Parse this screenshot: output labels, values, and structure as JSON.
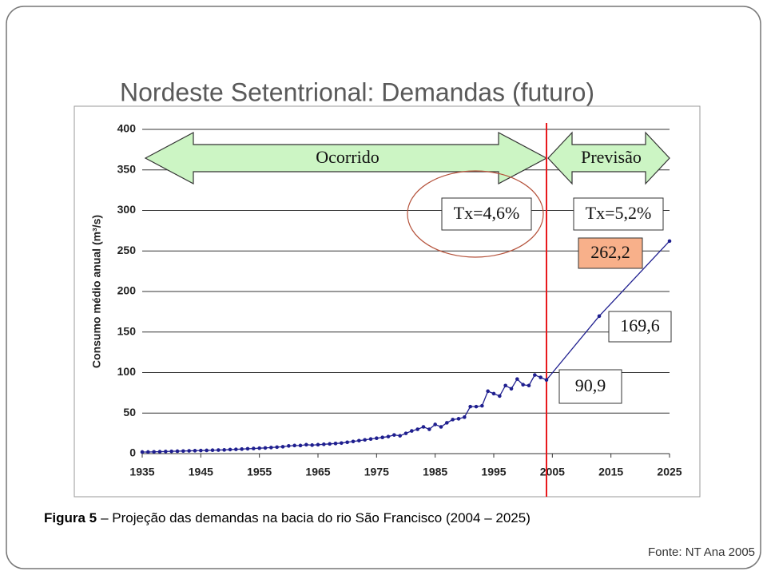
{
  "title": "Nordeste Setentrional: Demandas (futuro)",
  "caption_label": "Figura 5",
  "caption": "– Projeção das demandas na bacia do rio São Francisco (2004 – 2025)",
  "source": "Fonte: NT Ana 2005",
  "chart_data": {
    "type": "line",
    "ylabel": "Consumo médio anual (m³/s)",
    "x": [
      1935,
      1936,
      1937,
      1938,
      1939,
      1940,
      1941,
      1942,
      1943,
      1944,
      1945,
      1946,
      1947,
      1948,
      1949,
      1950,
      1951,
      1952,
      1953,
      1954,
      1955,
      1956,
      1957,
      1958,
      1959,
      1960,
      1961,
      1962,
      1963,
      1964,
      1965,
      1966,
      1967,
      1968,
      1969,
      1970,
      1971,
      1972,
      1973,
      1974,
      1975,
      1976,
      1977,
      1978,
      1979,
      1980,
      1981,
      1982,
      1983,
      1984,
      1985,
      1986,
      1987,
      1988,
      1989,
      1990,
      1991,
      1992,
      1993,
      1994,
      1995,
      1996,
      1997,
      1998,
      1999,
      2000,
      2001,
      2002,
      2003,
      2004,
      2013,
      2025
    ],
    "series": [
      {
        "name": "Consumo",
        "color": "#1f1f8f",
        "values": [
          2,
          2,
          2.2,
          2.4,
          2.6,
          2.8,
          3,
          3.2,
          3.4,
          3.6,
          3.8,
          4,
          4.2,
          4.4,
          4.6,
          5,
          5.3,
          5.6,
          6,
          6.3,
          6.7,
          7,
          7.5,
          8,
          8.5,
          9.5,
          10,
          10,
          11,
          10.5,
          11,
          11.5,
          12,
          12.5,
          13,
          14,
          15,
          16,
          17,
          18,
          19,
          20,
          21,
          23,
          22,
          25,
          28,
          30,
          33,
          30,
          36,
          33,
          38,
          42,
          43,
          45,
          58,
          58,
          59,
          77,
          74,
          71,
          84,
          80,
          92,
          85,
          84,
          97,
          94,
          90.9,
          169.6,
          262.2
        ],
        "value_labels": [
          null,
          null,
          null,
          null,
          null,
          null,
          null,
          null,
          null,
          null,
          null,
          null,
          null,
          null,
          null,
          null,
          null,
          null,
          null,
          null,
          null,
          null,
          null,
          null,
          null,
          null,
          null,
          null,
          null,
          null,
          null,
          null,
          null,
          null,
          null,
          null,
          null,
          null,
          null,
          null,
          null,
          null,
          null,
          null,
          null,
          null,
          null,
          null,
          null,
          null,
          null,
          null,
          null,
          null,
          null,
          null,
          null,
          null,
          null,
          null,
          null,
          null,
          null,
          null,
          null,
          null,
          null,
          null,
          null,
          "90,9",
          "169,6",
          "262,2"
        ]
      }
    ],
    "xlim": [
      1935,
      2025
    ],
    "xticks": [
      1935,
      1945,
      1955,
      1965,
      1975,
      1985,
      1995,
      2005,
      2015,
      2025
    ],
    "ylim": [
      0,
      400
    ],
    "yticks": [
      0,
      50,
      100,
      150,
      200,
      250,
      300,
      350,
      400
    ],
    "grid": true,
    "vline": {
      "x": 2004,
      "color": "#e8191c"
    },
    "annotations": {
      "past": "Ocorrido",
      "future": "Previsão",
      "rate_past": "Tx=4,6%",
      "rate_future": "Tx=5,2%"
    }
  }
}
